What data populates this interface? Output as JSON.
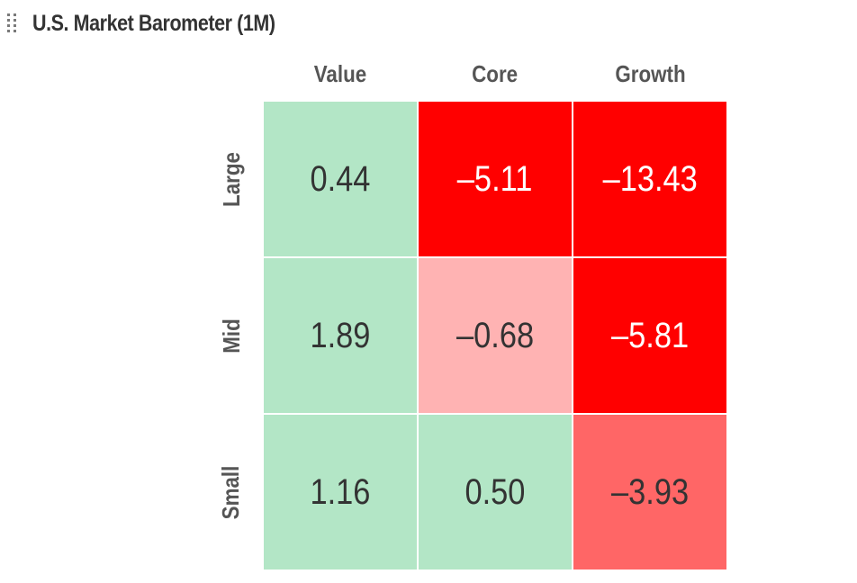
{
  "widget": {
    "title": "U.S. Market Barometer (1M)",
    "drag_icon": "drag-handle-icon"
  },
  "colors": {
    "strong_negative": "#ff0000",
    "negative": "#ff6666",
    "slight_negative": "#ffb3b3",
    "positive": "#b3e6c6",
    "text_dark": "#333333",
    "text_light": "#ffffff",
    "header_text": "#555555"
  },
  "chart_data": {
    "type": "heatmap",
    "title": "U.S. Market Barometer (1M)",
    "columns": [
      "Value",
      "Core",
      "Growth"
    ],
    "rows": [
      "Large",
      "Mid",
      "Small"
    ],
    "values": [
      [
        0.44,
        -5.11,
        -13.43
      ],
      [
        1.89,
        -0.68,
        -5.81
      ],
      [
        1.16,
        0.5,
        -3.93
      ]
    ],
    "labels": [
      [
        "0.44",
        "–5.11",
        "–13.43"
      ],
      [
        "1.89",
        "–0.68",
        "–5.81"
      ],
      [
        "1.16",
        "0.50",
        "–3.93"
      ]
    ]
  }
}
